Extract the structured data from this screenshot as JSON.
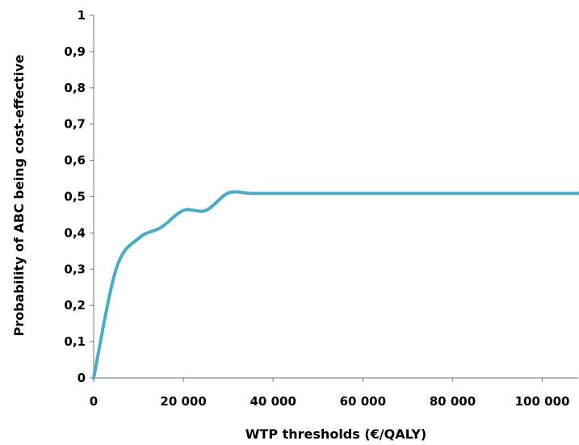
{
  "chart_data": {
    "type": "line",
    "title": "",
    "xlabel": "WTP thresholds (€/QALY)",
    "ylabel": "Probability of ABC being cost-effective",
    "xlim": [
      0,
      108000
    ],
    "ylim": [
      0,
      1
    ],
    "grid": false,
    "legend": "none",
    "x_ticks": [
      {
        "value": 0,
        "label": "0"
      },
      {
        "value": 20000,
        "label": "20 000"
      },
      {
        "value": 40000,
        "label": "40 000"
      },
      {
        "value": 60000,
        "label": "60 000"
      },
      {
        "value": 80000,
        "label": "80 000"
      },
      {
        "value": 100000,
        "label": "100 000"
      }
    ],
    "y_ticks": [
      {
        "value": 0,
        "label": "0"
      },
      {
        "value": 0.1,
        "label": "0,1"
      },
      {
        "value": 0.2,
        "label": "0,2"
      },
      {
        "value": 0.3,
        "label": "0,3"
      },
      {
        "value": 0.4,
        "label": "0,4"
      },
      {
        "value": 0.5,
        "label": "0,5"
      },
      {
        "value": 0.6,
        "label": "0,6"
      },
      {
        "value": 0.7,
        "label": "0,7"
      },
      {
        "value": 0.8,
        "label": "0,8"
      },
      {
        "value": 0.9,
        "label": "0,9"
      },
      {
        "value": 1,
        "label": "1"
      }
    ],
    "series": [
      {
        "color": "#4bacc6",
        "x": [
          0,
          5000,
          10000,
          15000,
          20000,
          25000,
          30000,
          35000,
          40000,
          50000,
          60000,
          70000,
          80000,
          90000,
          100000,
          108000
        ],
        "y": [
          0,
          0.3,
          0.385,
          0.415,
          0.462,
          0.462,
          0.51,
          0.509,
          0.509,
          0.509,
          0.509,
          0.509,
          0.509,
          0.509,
          0.509,
          0.509
        ]
      }
    ]
  }
}
